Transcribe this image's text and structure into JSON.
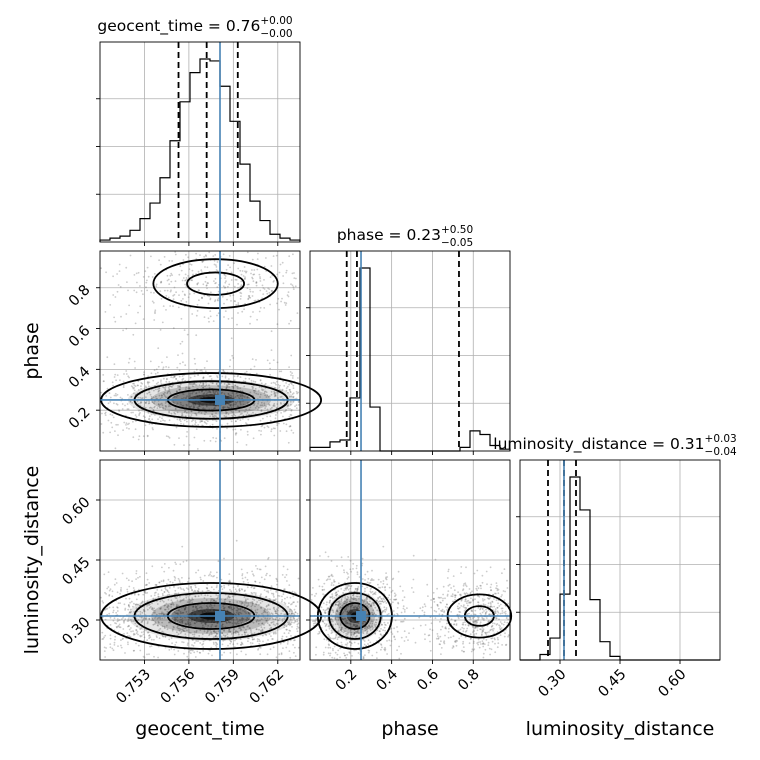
{
  "chart_data": {
    "type": "corner",
    "truth_color": "#4682b4",
    "parameters": [
      {
        "name": "geocent_time",
        "label": "geocent_time",
        "title_main": "geocent_time = 0.76",
        "title_plus": "+0.00",
        "title_minus": "−0.00",
        "range": [
          0.75,
          0.7635
        ],
        "ticks": [
          0.753,
          0.756,
          0.759,
          0.762
        ],
        "tick_labels": [
          "0.753",
          "0.756",
          "0.759",
          "0.762"
        ],
        "quantiles": [
          0.7553,
          0.7572,
          0.7593
        ],
        "truth": 0.7581,
        "hist_values": [
          1,
          2,
          3,
          6,
          12,
          20,
          33,
          52,
          72,
          87,
          94,
          93,
          80,
          62,
          40,
          21,
          11,
          4,
          2,
          1
        ]
      },
      {
        "name": "phase",
        "label": "phase",
        "title_main": "phase = 0.23",
        "title_plus": "+0.50",
        "title_minus": "−0.05",
        "range": [
          0.0,
          0.98
        ],
        "ticks": [
          0.2,
          0.4,
          0.6,
          0.8
        ],
        "tick_labels": [
          "0.2",
          "0.4",
          "0.6",
          "0.8"
        ],
        "quantiles": [
          0.18,
          0.23,
          0.73
        ],
        "truth": 0.25,
        "hist_values": [
          2,
          2,
          5,
          6,
          29,
          100,
          24,
          0,
          0,
          0,
          0,
          0,
          0,
          0,
          0,
          2,
          11,
          9,
          3,
          1
        ]
      },
      {
        "name": "luminosity_distance",
        "label": "luminosity_distance",
        "title_main": "luminosity_distance = 0.31",
        "title_plus": "+0.03",
        "title_minus": "−0.04",
        "range": [
          0.2,
          0.7
        ],
        "ticks": [
          0.3,
          0.45,
          0.6
        ],
        "tick_labels": [
          "0.30",
          "0.45",
          "0.60"
        ],
        "quantiles": [
          0.27,
          0.31,
          0.34
        ],
        "truth": 0.31,
        "hist_values": [
          0,
          0,
          3,
          12,
          36,
          100,
          82,
          33,
          10,
          2,
          0,
          0,
          0,
          0,
          0,
          0,
          0,
          0,
          0,
          0
        ]
      }
    ],
    "density_blobs": [
      {
        "panel": "phase_vs_geocent_time",
        "cx": 0.7575,
        "cy": 0.25,
        "rx": 0.0045,
        "ry": 0.08,
        "n": 1500
      },
      {
        "panel": "phase_vs_geocent_time",
        "cx": 0.7578,
        "cy": 0.82,
        "rx": 0.0035,
        "ry": 0.1,
        "n": 500
      },
      {
        "panel": "luminosity_distance_vs_geocent_time",
        "cx": 0.7575,
        "cy": 0.31,
        "rx": 0.0045,
        "ry": 0.05,
        "n": 2000
      },
      {
        "panel": "luminosity_distance_vs_phase",
        "cx": 0.22,
        "cy": 0.31,
        "rx": 0.11,
        "ry": 0.05,
        "n": 1000
      },
      {
        "panel": "luminosity_distance_vs_phase",
        "cx": 0.83,
        "cy": 0.31,
        "rx": 0.13,
        "ry": 0.045,
        "n": 700
      }
    ]
  }
}
